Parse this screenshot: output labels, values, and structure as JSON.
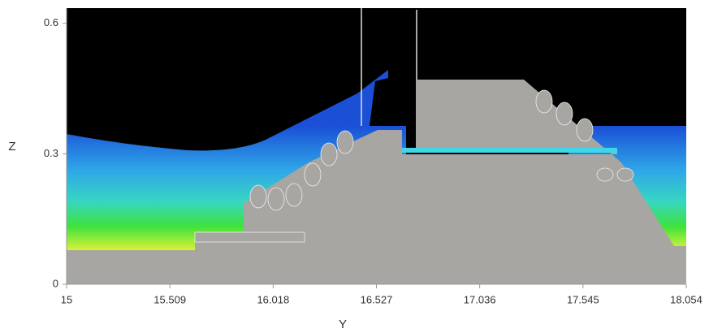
{
  "chart_data": {
    "type": "field",
    "x_label": "Y",
    "y_label": "Z",
    "xlim": [
      15,
      18.054
    ],
    "xticks": [
      15,
      15.509,
      16.018,
      16.527,
      17.036,
      17.545,
      18.054
    ],
    "ylim": [
      0,
      0.635
    ],
    "yticks": [
      0,
      0.3,
      0.6
    ]
  }
}
